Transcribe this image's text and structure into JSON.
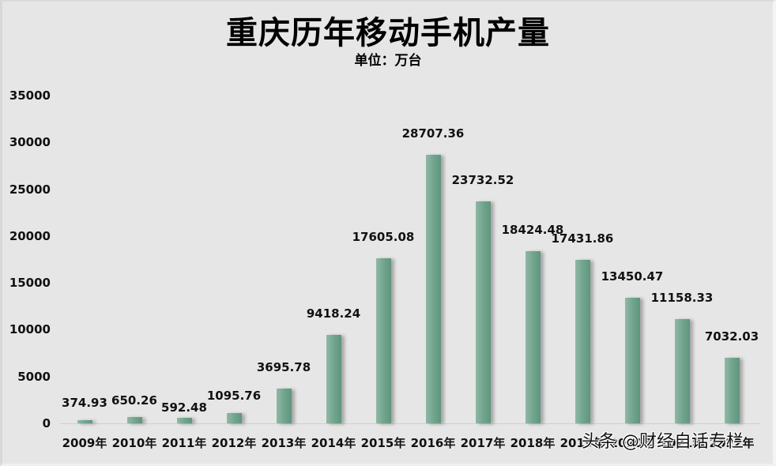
{
  "chart": {
    "title": "重庆历年移动手机产量",
    "subtitle": "单位：万台",
    "y_ticks": [
      "35000",
      "30000",
      "25000",
      "20000",
      "15000",
      "10000",
      "5000",
      "0"
    ],
    "bar_color": "#6fa38c",
    "background_color": "#e6e6e6"
  },
  "bars": [
    {
      "category": "2009年",
      "label": "374.93"
    },
    {
      "category": "2010年",
      "label": "650.26"
    },
    {
      "category": "2011年",
      "label": "592.48"
    },
    {
      "category": "2012年",
      "label": "1095.76"
    },
    {
      "category": "2013年",
      "label": "3695.78"
    },
    {
      "category": "2014年",
      "label": "9418.24"
    },
    {
      "category": "2015年",
      "label": "17605.08"
    },
    {
      "category": "2016年",
      "label": "28707.36"
    },
    {
      "category": "2017年",
      "label": "23732.52"
    },
    {
      "category": "2018年",
      "label": "18424.48"
    },
    {
      "category": "2019年",
      "label": "17431.86"
    },
    {
      "category": "2020年",
      "label": "13450.47"
    },
    {
      "category": "2021年",
      "label": "11158.33"
    },
    {
      "category": "2022年",
      "label": "7032.03"
    }
  ],
  "watermark": "头条 @财经自话专栏",
  "chart_data": {
    "type": "bar",
    "title": "重庆历年移动手机产量",
    "subtitle": "单位：万台",
    "categories": [
      "2009年",
      "2010年",
      "2011年",
      "2012年",
      "2013年",
      "2014年",
      "2015年",
      "2016年",
      "2017年",
      "2018年",
      "2019年",
      "2020年",
      "2021年",
      "2022年"
    ],
    "values": [
      374.93,
      650.26,
      592.48,
      1095.76,
      3695.78,
      9418.24,
      17605.08,
      28707.36,
      23732.52,
      18424.48,
      17431.86,
      13450.47,
      11158.33,
      7032.03
    ],
    "xlabel": "",
    "ylabel": "万台",
    "ylim": [
      0,
      35000
    ],
    "yticks": [
      0,
      5000,
      10000,
      15000,
      20000,
      25000,
      30000,
      35000
    ],
    "grid": false,
    "legend": null,
    "data_labels": true
  }
}
